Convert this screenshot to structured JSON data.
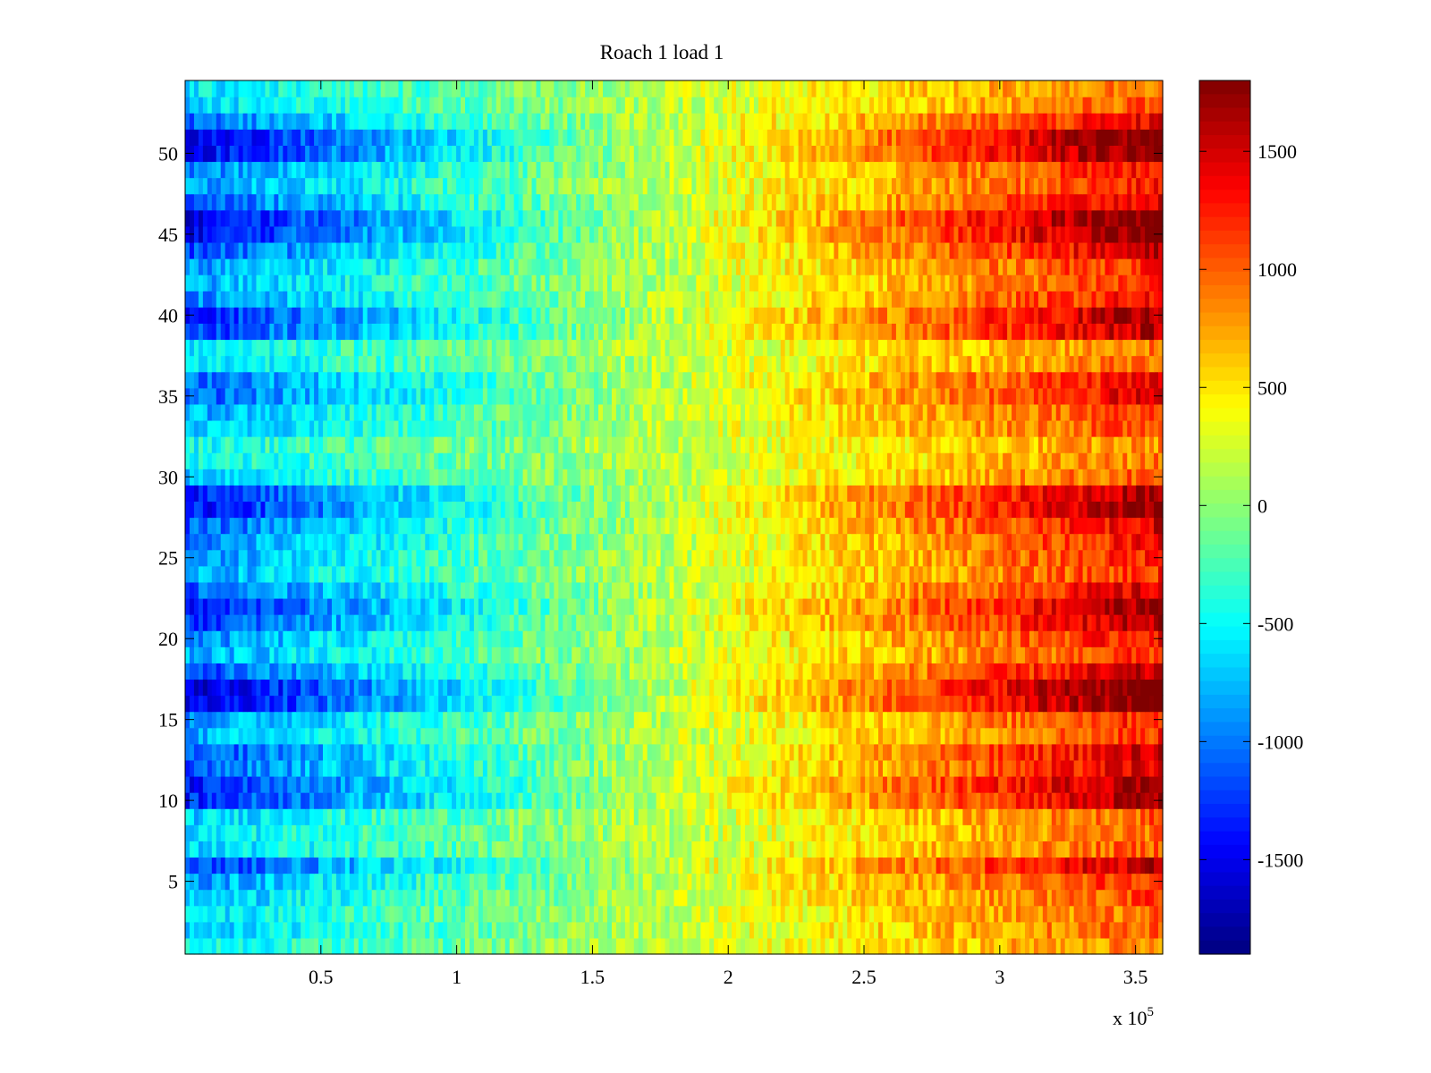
{
  "chart_data": {
    "type": "heatmap",
    "title": "Roach 1 load 1",
    "xlabel": "",
    "ylabel": "",
    "x_exponent_label": {
      "base": "x 10",
      "exponent": "5"
    },
    "xlim": [
      0,
      3.6
    ],
    "ylim": [
      0.5,
      54.5
    ],
    "x_scale": 100000,
    "x_ticks": [
      0.5,
      1,
      1.5,
      2,
      2.5,
      3,
      3.5
    ],
    "x_tick_labels": [
      "0.5",
      "1",
      "1.5",
      "2",
      "2.5",
      "3",
      "3.5"
    ],
    "y_ticks": [
      5,
      10,
      15,
      20,
      25,
      30,
      35,
      40,
      45,
      50
    ],
    "y_tick_labels": [
      "5",
      "10",
      "15",
      "20",
      "25",
      "30",
      "35",
      "40",
      "45",
      "50"
    ],
    "colorbar": {
      "colormap": "jet",
      "clim": [
        -1900,
        1800
      ],
      "ticks": [
        -1500,
        -1000,
        -500,
        0,
        500,
        1000,
        1500
      ],
      "tick_labels": [
        "-1500",
        "-1000",
        "-500",
        "0",
        "500",
        "1000",
        "1500"
      ]
    },
    "rows": 54,
    "value_range": {
      "left_edge": [
        -1900,
        -400
      ],
      "center": [
        -300,
        300
      ],
      "right_edge": [
        400,
        1800
      ]
    },
    "row_amplitudes": [
      0.5,
      0.6,
      0.55,
      0.65,
      0.75,
      1.0,
      0.6,
      0.55,
      0.6,
      1.05,
      1.1,
      0.9,
      0.95,
      0.7,
      0.75,
      1.2,
      1.25,
      0.95,
      0.7,
      0.8,
      1.0,
      1.1,
      0.9,
      0.7,
      0.75,
      0.8,
      0.9,
      1.1,
      1.05,
      0.6,
      0.5,
      0.45,
      0.65,
      0.7,
      0.9,
      0.85,
      0.55,
      0.5,
      1.0,
      1.05,
      0.8,
      0.7,
      0.75,
      0.95,
      1.15,
      1.2,
      0.9,
      0.75,
      0.8,
      1.15,
      1.2,
      0.85,
      0.6,
      0.55
    ],
    "grid": false
  }
}
